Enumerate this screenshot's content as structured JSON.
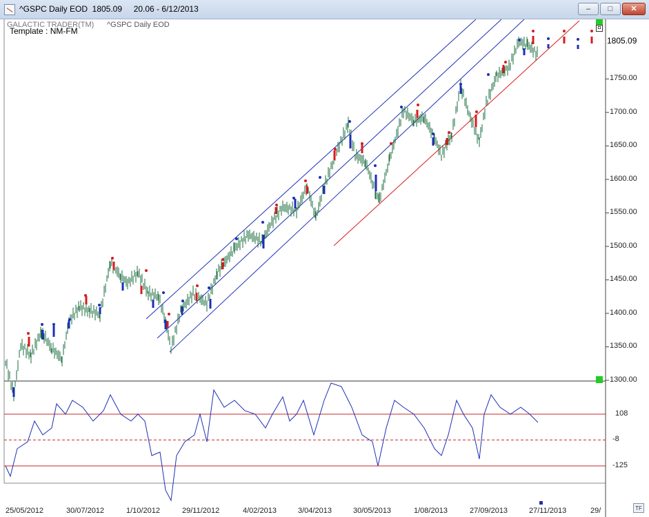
{
  "window": {
    "title": "^GSPC Daily EOD  1805.09     20.06 - 6/12/2013",
    "minimize_glyph": "–",
    "maximize_glyph": "□",
    "close_glyph": "✕"
  },
  "chart_header": {
    "brand": "GALACTIC TRADER(TM)",
    "template": "Template : NM-FM",
    "symbol": "^GSPC Daily EOD"
  },
  "price_axis": {
    "current_price": "1805.09",
    "ticks": [
      "1750.00",
      "1700.00",
      "1650.00",
      "1600.00",
      "1550.00",
      "1500.00",
      "1450.00",
      "1400.00",
      "1350.00",
      "1300.00"
    ]
  },
  "oscillator_axis": {
    "ticks": [
      "108",
      "-8",
      "-125"
    ]
  },
  "dates": [
    "25/05/2012",
    "30/07/2012",
    "1/10/2012",
    "29/11/2012",
    "4/02/2013",
    "3/04/2013",
    "30/05/2013",
    "1/08/2013",
    "27/09/2013",
    "27/11/2013",
    "29/"
  ],
  "tf_button": "TF",
  "colors": {
    "channel": "#1c2fb5",
    "trendline": "#d81b1b",
    "up_dot": "#d81b1b",
    "down_dot": "#1c2fb5",
    "bar": "#1a6b3c",
    "osc_line": "#1c2fb5",
    "osc_level": "#c62828"
  },
  "chart_data": {
    "type": "line",
    "title": "^GSPC Daily EOD",
    "ylim": [
      1295,
      1835
    ],
    "price_points": [
      {
        "x": "25/05/2012",
        "y": 1318
      },
      {
        "x": "late 06/2012",
        "y": 1360
      },
      {
        "x": "30/07/2012",
        "y": 1390
      },
      {
        "x": "mid 08/2012",
        "y": 1410
      },
      {
        "x": "mid 09/2012",
        "y": 1465
      },
      {
        "x": "1/10/2012",
        "y": 1440
      },
      {
        "x": "mid 11/2012",
        "y": 1355
      },
      {
        "x": "29/11/2012",
        "y": 1415
      },
      {
        "x": "4/02/2013",
        "y": 1510
      },
      {
        "x": "3/04/2013",
        "y": 1565
      },
      {
        "x": "mid 05/2013",
        "y": 1665
      },
      {
        "x": "30/05/2013",
        "y": 1630
      },
      {
        "x": "late 06/2013",
        "y": 1580
      },
      {
        "x": "1/08/2013",
        "y": 1700
      },
      {
        "x": "late 08/2013",
        "y": 1635
      },
      {
        "x": "27/09/2013",
        "y": 1700
      },
      {
        "x": "early 10/2013",
        "y": 1665
      },
      {
        "x": "27/11/2013",
        "y": 1805
      }
    ],
    "oscillator": {
      "ylim": [
        -160,
        225
      ],
      "levels": [
        108,
        -8,
        -125
      ]
    }
  }
}
